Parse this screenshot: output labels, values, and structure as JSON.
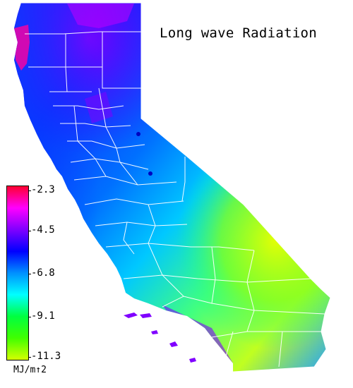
{
  "title": "Long wave Radiation",
  "legend": {
    "units": "MJ/m↑2",
    "ticks": [
      "-2.3",
      "-4.5",
      "-6.8",
      "-9.1",
      "-11.3"
    ],
    "colors": [
      "#ff0030",
      "#ff00ff",
      "#8000ff",
      "#0000ff",
      "#0090ff",
      "#00ffff",
      "#00ff40",
      "#40ff00",
      "#d4ff00"
    ]
  },
  "map": {
    "region": "california",
    "boundary_color": "#ffffff",
    "ocean_color": "#ffffff"
  }
}
